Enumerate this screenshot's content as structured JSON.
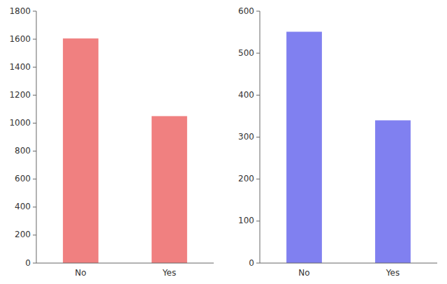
{
  "chart_data": [
    {
      "type": "bar",
      "categories": [
        "No",
        "Yes"
      ],
      "values": [
        1605,
        1050
      ],
      "color": "#f08080",
      "ylim": [
        0,
        1800
      ],
      "yticks": [
        0,
        200,
        400,
        600,
        800,
        1000,
        1200,
        1400,
        1600,
        1800
      ]
    },
    {
      "type": "bar",
      "categories": [
        "No",
        "Yes"
      ],
      "values": [
        551,
        340
      ],
      "color": "#8080f0",
      "ylim": [
        0,
        600
      ],
      "yticks": [
        0,
        100,
        200,
        300,
        400,
        500,
        600
      ]
    }
  ]
}
